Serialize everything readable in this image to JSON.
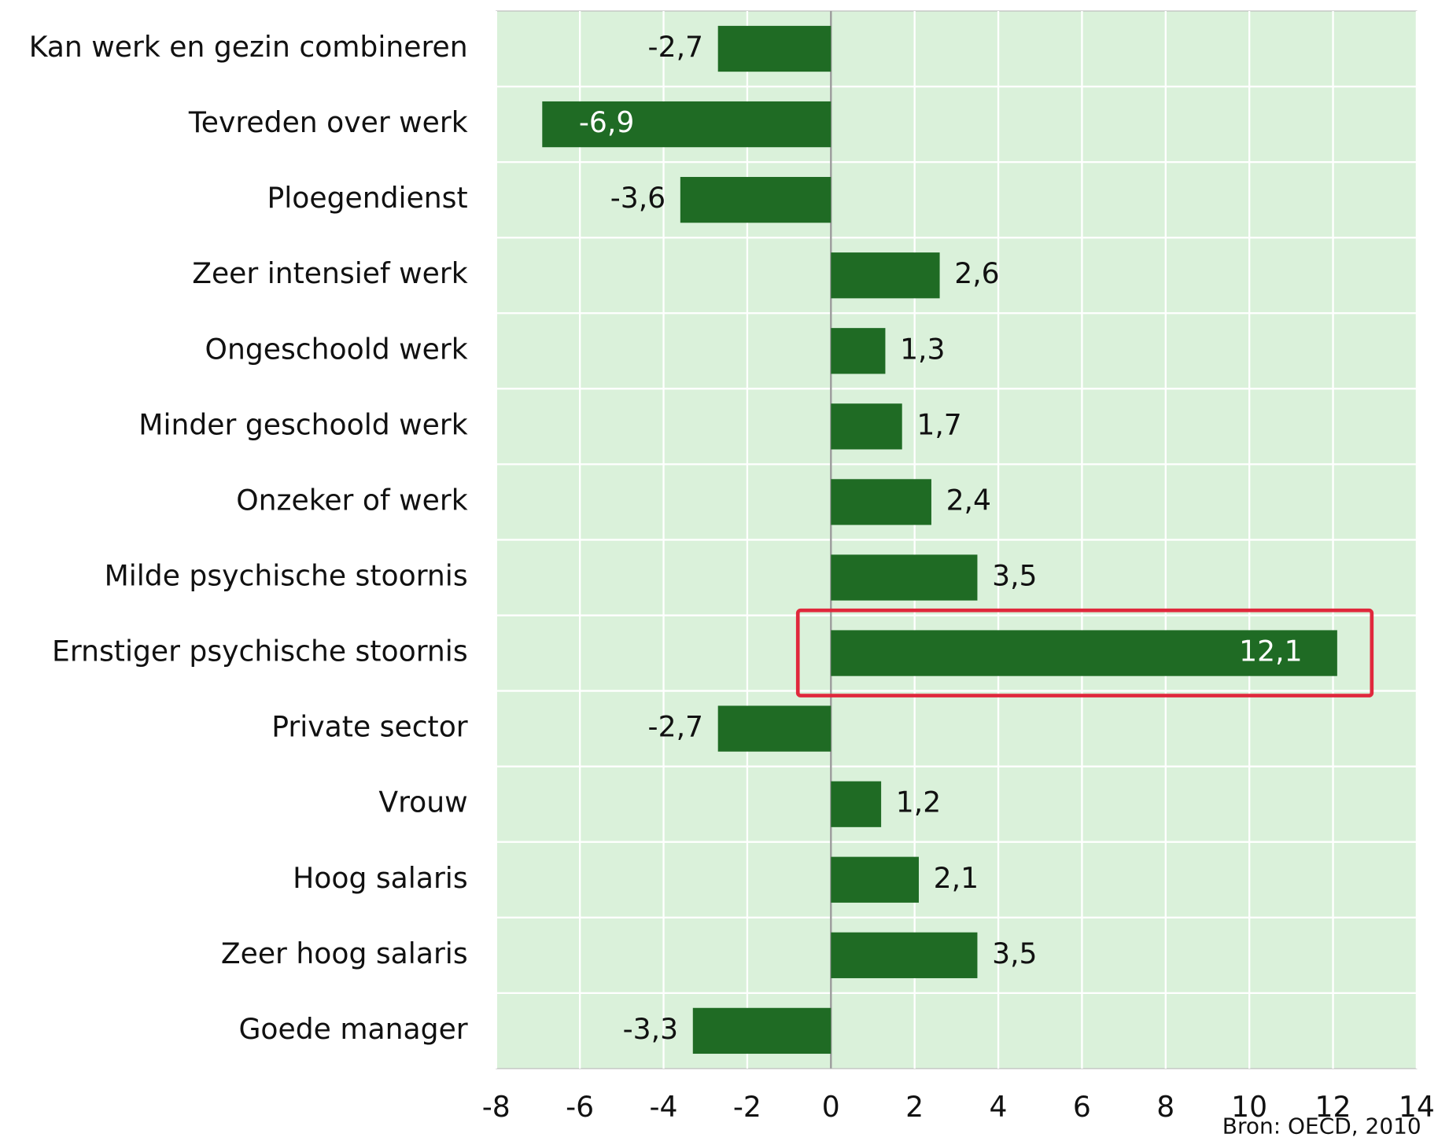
{
  "chart_data": {
    "type": "bar",
    "orientation": "horizontal",
    "categories": [
      "Kan werk en gezin combineren",
      "Tevreden over werk",
      "Ploegendienst",
      "Zeer intensief werk",
      "Ongeschoold werk",
      "Minder geschoold werk",
      "Onzeker of werk",
      "Milde psychische stoornis",
      "Ernstiger psychische stoornis",
      "Private sector",
      "Vrouw",
      "Hoog salaris",
      "Zeer hoog salaris",
      "Goede manager"
    ],
    "values": [
      -2.7,
      -6.9,
      -3.6,
      2.6,
      1.3,
      1.7,
      2.4,
      3.5,
      12.1,
      -2.7,
      1.2,
      2.1,
      3.5,
      -3.3
    ],
    "value_labels": [
      "-2,7",
      "-6,9",
      "-3,6",
      "2,6",
      "1,3",
      "1,7",
      "2,4",
      "3,5",
      "12,1",
      "-2,7",
      "1,2",
      "2,1",
      "3,5",
      "-3,3"
    ],
    "color": "#1f6b24",
    "xlim": [
      -8,
      14
    ],
    "xticks": [
      -8,
      -6,
      -4,
      -2,
      0,
      2,
      4,
      6,
      8,
      10,
      12,
      14
    ],
    "grid": true,
    "source": "Bron: OECD, 2010"
  }
}
